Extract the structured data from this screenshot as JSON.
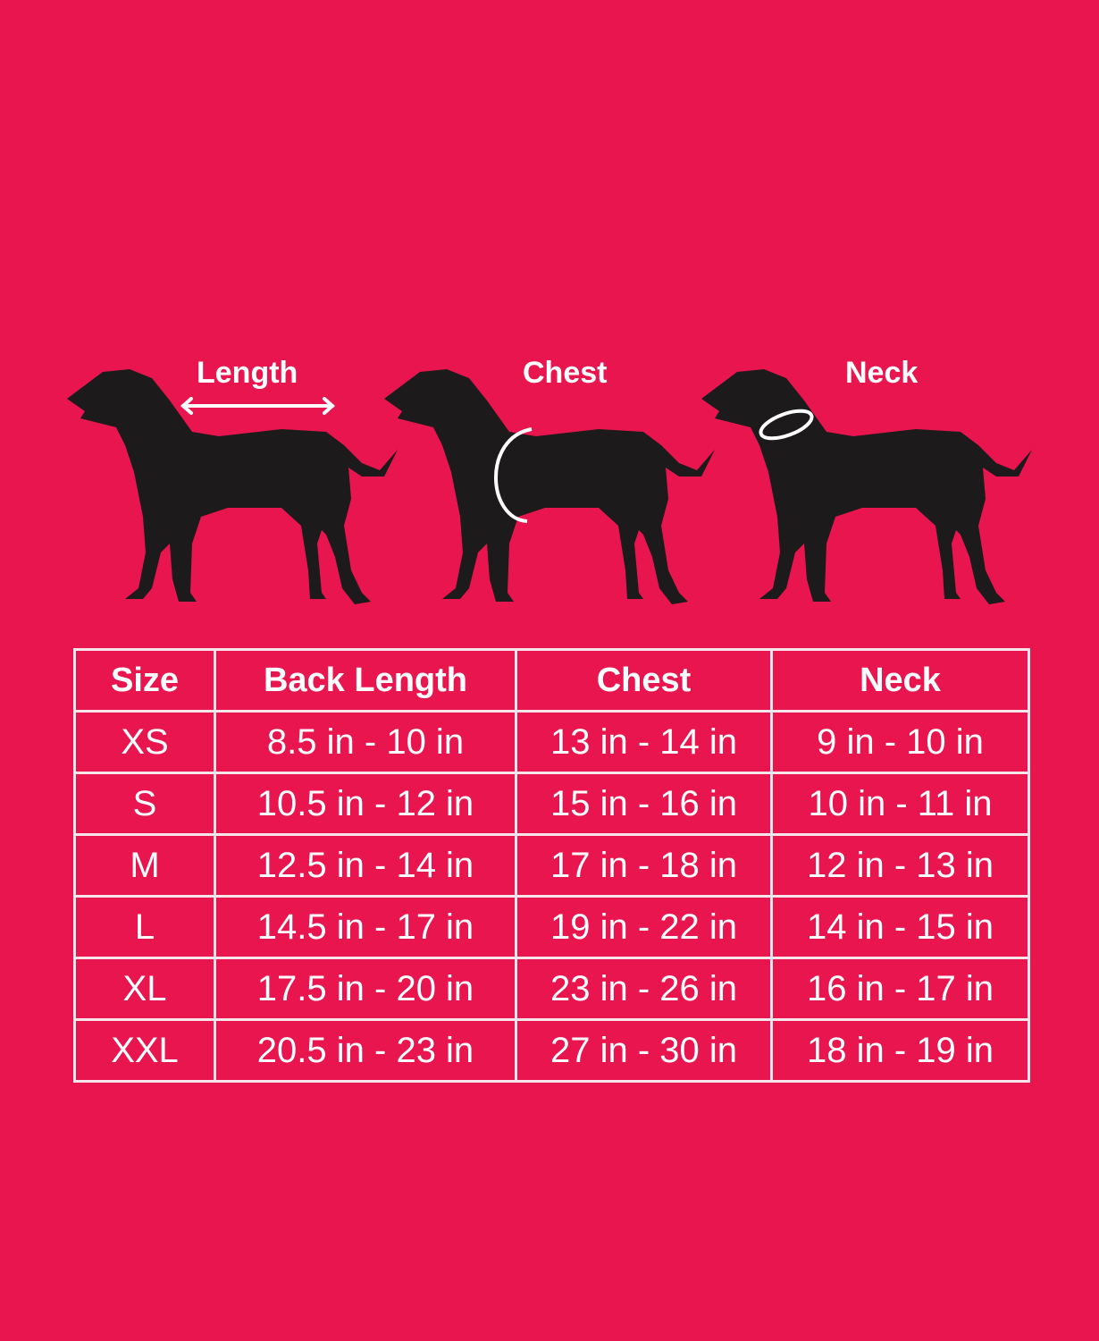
{
  "colors": {
    "background": "#E8154F",
    "dog": "#1c1a1a",
    "lines": "#f6e6ea"
  },
  "diagrams": [
    {
      "label": "Length",
      "indicator": "double-arrow-icon"
    },
    {
      "label": "Chest",
      "indicator": "chest-band-icon"
    },
    {
      "label": "Neck",
      "indicator": "neck-collar-icon"
    }
  ],
  "table": {
    "headers": [
      "Size",
      "Back Length",
      "Chest",
      "Neck"
    ],
    "rows": [
      [
        "XS",
        "8.5 in - 10 in",
        "13 in - 14 in",
        "9 in - 10 in"
      ],
      [
        "S",
        "10.5 in - 12 in",
        "15 in - 16 in",
        "10 in - 11 in"
      ],
      [
        "M",
        "12.5 in - 14 in",
        "17 in - 18 in",
        "12 in - 13 in"
      ],
      [
        "L",
        "14.5 in - 17 in",
        "19 in - 22 in",
        "14 in - 15 in"
      ],
      [
        "XL",
        "17.5 in - 20 in",
        "23 in - 26 in",
        "16 in - 17 in"
      ],
      [
        "XXL",
        "20.5 in - 23 in",
        "27 in - 30 in",
        "18 in - 19 in"
      ]
    ]
  }
}
